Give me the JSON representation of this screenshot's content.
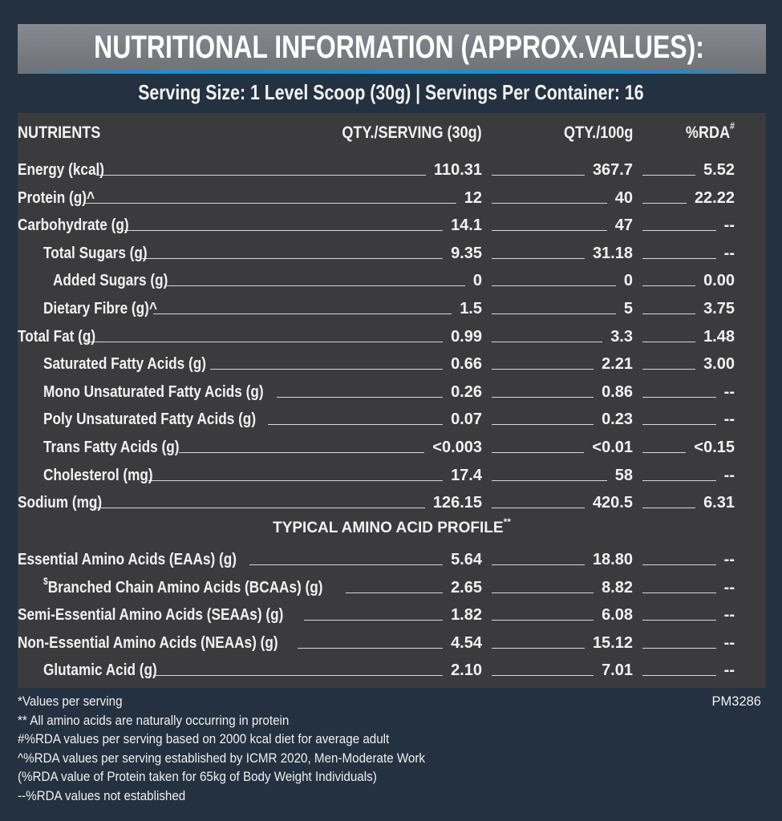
{
  "title": "NUTRITIONAL INFORMATION (APPROX.VALUES):",
  "serving_line": "Serving Size: 1 Level Scoop (30g)  |  Servings Per Container: 16",
  "colors": {
    "background": "#243140",
    "title_bar": "#7a7e83",
    "accent_line": "#1590d6",
    "table": "#3b3b3d",
    "text": "#f2f2f2"
  },
  "header": {
    "nutrients": "NUTRIENTS",
    "per_serving": "QTY./SERVING (30g)",
    "per_100g": "QTY./100g",
    "rda": "%RDA",
    "rda_sup": "#"
  },
  "rows": [
    {
      "name": "Energy (kcal)",
      "indent": 0,
      "per_serving": "110.31",
      "per_100g": "367.7",
      "rda": "5.52"
    },
    {
      "name": "Protein (g)^",
      "indent": 0,
      "per_serving": "12",
      "per_100g": "40",
      "rda": "22.22"
    },
    {
      "name": "Carbohydrate (g)",
      "indent": 0,
      "per_serving": "14.1",
      "per_100g": "47",
      "rda": "--"
    },
    {
      "name": "Total Sugars (g)",
      "indent": 1,
      "per_serving": "9.35",
      "per_100g": "31.18",
      "rda": "--"
    },
    {
      "name": "Added Sugars (g)",
      "indent": 2,
      "per_serving": "0",
      "per_100g": "0",
      "rda": "0.00"
    },
    {
      "name": "Dietary Fibre (g)^",
      "indent": 1,
      "per_serving": "1.5",
      "per_100g": "5",
      "rda": "3.75"
    },
    {
      "name": "Total Fat (g)",
      "indent": 0,
      "per_serving": "0.99",
      "per_100g": "3.3",
      "rda": "1.48"
    },
    {
      "name": "Saturated Fatty Acids (g)",
      "indent": 1,
      "per_serving": "0.66",
      "per_100g": "2.21",
      "rda": "3.00"
    },
    {
      "name": "Mono Unsaturated Fatty Acids (g)",
      "indent": 1,
      "per_serving": "0.26",
      "per_100g": "0.86",
      "rda": "--"
    },
    {
      "name": "Poly Unsaturated Fatty Acids (g)",
      "indent": 1,
      "per_serving": "0.07",
      "per_100g": "0.23",
      "rda": "--"
    },
    {
      "name": "Trans Fatty Acids (g)",
      "indent": 1,
      "per_serving": "<0.003",
      "per_100g": "<0.01",
      "rda": "<0.15"
    },
    {
      "name": "Cholesterol  (mg)",
      "indent": 1,
      "per_serving": "17.4",
      "per_100g": "58",
      "rda": "--"
    },
    {
      "name": "Sodium (mg)",
      "indent": 0,
      "per_serving": "126.15",
      "per_100g": "420.5",
      "rda": "6.31"
    }
  ],
  "amino_header": {
    "label": "TYPICAL AMINO ACID PROFILE",
    "sup": "**"
  },
  "amino_rows": [
    {
      "name": "Essential Amino Acids (EAAs) (g)",
      "indent": 0,
      "per_serving": "5.64",
      "per_100g": "18.80",
      "rda": "--"
    },
    {
      "name": "Branched Chain Amino Acids (BCAAs) (g)",
      "sup_prefix": "$",
      "indent": 1,
      "per_serving": "2.65",
      "per_100g": "8.82",
      "rda": "--"
    },
    {
      "name": "Semi-Essential Amino Acids (SEAAs) (g)",
      "indent": 0,
      "per_serving": "1.82",
      "per_100g": "6.08",
      "rda": "--"
    },
    {
      "name": "Non-Essential Amino Acids (NEAAs) (g)",
      "indent": 0,
      "per_serving": "4.54",
      "per_100g": "15.12",
      "rda": "--"
    },
    {
      "name": "Glutamic Acid (g)",
      "indent": 1,
      "per_serving": "2.10",
      "per_100g": "7.01",
      "rda": "--"
    }
  ],
  "footnotes": [
    "*Values per serving",
    "** All amino acids are naturally occurring in protein",
    "#%RDA values per serving based on 2000 kcal diet for average adult",
    "^%RDA values per serving established by ICMR 2020, Men-Moderate Work",
    "(%RDA value of Protein taken for 65kg of Body Weight Individuals)",
    "--%RDA values not established"
  ],
  "product_code": "PM3286"
}
